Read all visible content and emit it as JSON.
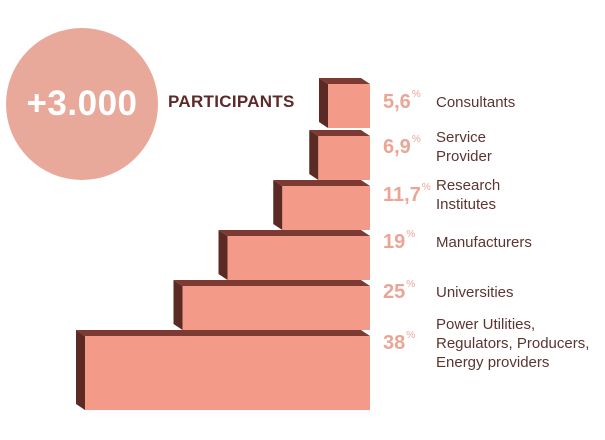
{
  "headline": {
    "number": "+3.000",
    "label": "PARTICIPANTS"
  },
  "colors": {
    "circle": "#e9a99a",
    "brick_face": "#f39b88",
    "brick_side": "#5c2a25",
    "brick_top": "#7d3a33",
    "pct_text": "#eba596",
    "label_text": "#5c3530",
    "participants_text": "#5c2a28"
  },
  "chart_data": {
    "type": "bar",
    "orientation": "horizontal",
    "categories": [
      "Consultants",
      "Service\nProvider",
      "Research\nInstitutes",
      "Manufacturers",
      "Universities",
      "Power Utilities,\nRegulators, Producers,\nEnergy providers"
    ],
    "values": [
      5.6,
      6.9,
      11.7,
      19,
      25,
      38
    ],
    "value_labels": [
      "5,6",
      "6,9",
      "11,7",
      "19",
      "25",
      "38"
    ],
    "unit": "%"
  }
}
